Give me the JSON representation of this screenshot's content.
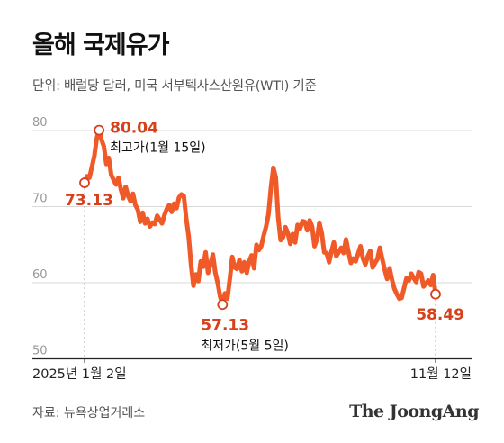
{
  "title": "올해 국제유가",
  "subtitle": "단위: 배럴당 달러, 미국 서부텍사스산원유(WTI) 기준",
  "source": "자료: 뉴욕상업거래소",
  "brand": "The JoongAng",
  "colors": {
    "line": "#f05a28",
    "highlight": "#d7401a",
    "grid": "#d9d9d9",
    "axis": "#999999"
  },
  "chart_data": {
    "type": "line",
    "title": "올해 국제유가",
    "xlabel": "",
    "ylabel": "",
    "ylim": [
      50,
      82
    ],
    "yticks": [
      "80",
      "70",
      "60",
      "50"
    ],
    "x_start_label": "2025년 1월 2일",
    "x_end_label": "11월 12일",
    "grid": true,
    "series": [
      {
        "values": [
          73.13,
          74.0,
          73.8,
          75.2,
          76.6,
          78.9,
          80.04,
          78.8,
          77.9,
          75.6,
          76.4,
          74.2,
          73.5,
          72.9,
          73.8,
          72.3,
          71.1,
          72.6,
          71.4,
          70.7,
          71.7,
          70.2,
          69.6,
          68.0,
          69.2,
          67.8,
          68.4,
          67.4,
          67.9,
          67.7,
          68.8,
          68.3,
          67.8,
          68.9,
          69.7,
          70.2,
          69.3,
          70.4,
          69.8,
          71.2,
          71.6,
          71.4,
          68.4,
          66.1,
          62.4,
          59.6,
          61.1,
          60.2,
          62.8,
          62.1,
          64.0,
          61.3,
          62.5,
          63.7,
          61.4,
          60.0,
          58.2,
          57.13,
          58.6,
          57.9,
          60.5,
          63.4,
          62.0,
          61.8,
          63.0,
          61.5,
          62.7,
          61.3,
          62.8,
          63.6,
          61.9,
          65.0,
          64.3,
          64.8,
          66.2,
          67.4,
          69.0,
          72.5,
          75.1,
          73.8,
          68.5,
          65.6,
          66.0,
          67.3,
          66.5,
          65.1,
          66.4,
          65.3,
          67.6,
          67.1,
          68.1,
          68.0,
          66.9,
          68.2,
          67.4,
          64.8,
          65.7,
          67.9,
          66.5,
          64.0,
          63.9,
          62.7,
          64.1,
          65.3,
          63.5,
          64.0,
          64.6,
          63.9,
          65.7,
          64.1,
          62.6,
          63.2,
          62.8,
          63.8,
          64.8,
          63.2,
          62.4,
          63.5,
          64.2,
          62.0,
          62.6,
          63.1,
          64.6,
          63.1,
          61.7,
          60.5,
          61.9,
          60.4,
          59.2,
          58.5,
          57.9,
          58.0,
          59.3,
          60.6,
          60.3,
          61.2,
          60.6,
          60.1,
          61.4,
          61.2,
          59.5,
          59.9,
          60.3,
          59.7,
          61.0,
          58.49
        ]
      }
    ],
    "annotations": [
      {
        "kind": "start",
        "value": "73.13",
        "note": ""
      },
      {
        "kind": "max",
        "value": "80.04",
        "note": "최고가(1월 15일)"
      },
      {
        "kind": "min",
        "value": "57.13",
        "note": "최저가(5월 5일)"
      },
      {
        "kind": "end",
        "value": "58.49",
        "note": ""
      }
    ]
  }
}
